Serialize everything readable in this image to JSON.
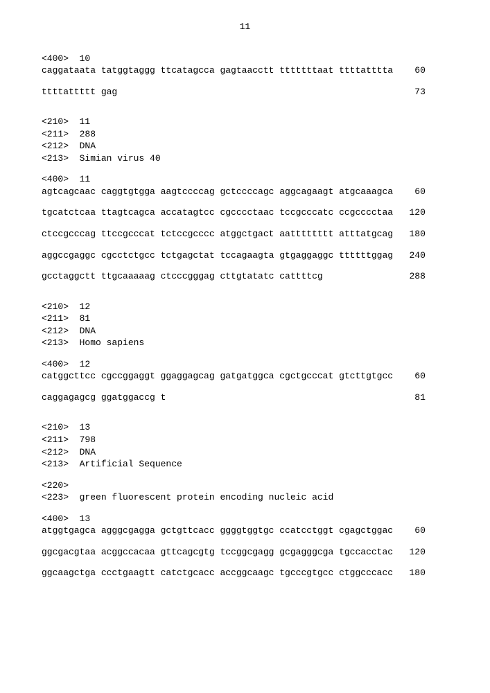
{
  "page_number": "11",
  "entries": [
    {
      "tags": [
        "<400>  10"
      ],
      "seq_lines": [
        "caggataata tatggtaggg ttcatagcca gagtaacctt tttttttaat ttttatttta    60",
        "ttttattttt gag                                                       73"
      ]
    },
    {
      "tags": [
        "<210>  11",
        "<211>  288",
        "<212>  DNA",
        "<213>  Simian virus 40"
      ],
      "seq_header": "<400>  11",
      "seq_lines": [
        "agtcagcaac caggtgtgga aagtccccag gctccccagc aggcagaagt atgcaaagca    60",
        "tgcatctcaa ttagtcagca accatagtcc cgcccctaac tccgcccatc ccgcccctaa   120",
        "ctccgcccag ttccgcccat tctccgcccc atggctgact aatttttttt atttatgcag   180",
        "aggccgaggc cgcctctgcc tctgagctat tccagaagta gtgaggaggc ttttttggag   240",
        "gcctaggctt ttgcaaaaag ctcccgggag cttgtatatc cattttcg                288"
      ]
    },
    {
      "tags": [
        "<210>  12",
        "<211>  81",
        "<212>  DNA",
        "<213>  Homo sapiens"
      ],
      "seq_header": "<400>  12",
      "seq_lines": [
        "catggcttcc cgccggaggt ggaggagcag gatgatggca cgctgcccat gtcttgtgcc    60",
        "caggagagcg ggatggaccg t                                              81"
      ]
    },
    {
      "tags": [
        "<210>  13",
        "<211>  798",
        "<212>  DNA",
        "<213>  Artificial Sequence"
      ],
      "extra_tags": [
        "<220>",
        "<223>  green fluorescent protein encoding nucleic acid"
      ],
      "seq_header": "<400>  13",
      "seq_lines": [
        "atggtgagca agggcgagga gctgttcacc ggggtggtgc ccatcctggt cgagctggac    60",
        "ggcgacgtaa acggccacaa gttcagcgtg tccggcgagg gcgagggcga tgccacctac   120",
        "ggcaagctga ccctgaagtt catctgcacc accggcaagc tgcccgtgcc ctggcccacc   180"
      ]
    }
  ]
}
